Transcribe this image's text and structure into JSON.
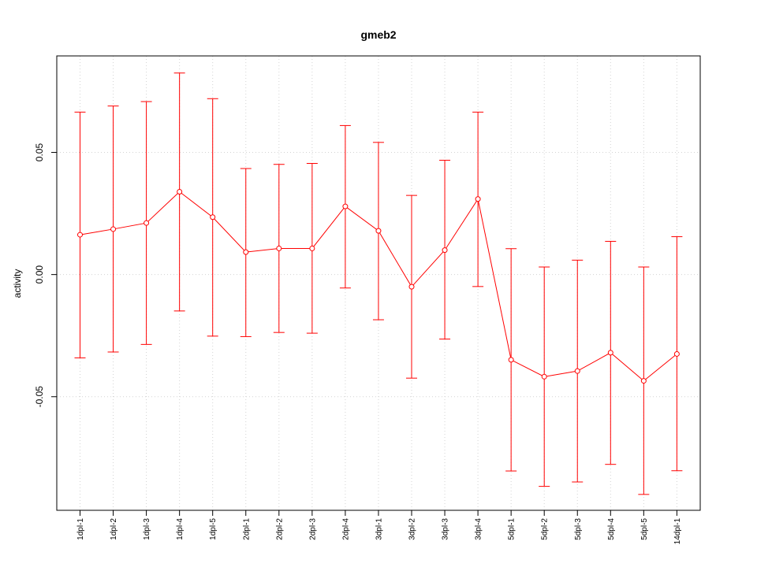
{
  "chart_data": {
    "type": "line",
    "title": "gmeb2",
    "xlabel": "",
    "ylabel": "activity",
    "categories": [
      "1dpl-1",
      "1dpl-2",
      "1dpl-3",
      "1dpl-4",
      "1dpl-5",
      "2dpl-1",
      "2dpl-2",
      "2dpl-3",
      "2dpl-4",
      "3dpl-1",
      "3dpl-2",
      "3dpl-3",
      "3dpl-4",
      "5dpl-1",
      "5dpl-2",
      "5dpl-3",
      "5dpl-4",
      "5dpl-5",
      "14dpl-1"
    ],
    "values": [
      0.0163,
      0.0186,
      0.0211,
      0.0339,
      0.0235,
      0.0092,
      0.0107,
      0.0107,
      0.0279,
      0.0179,
      -0.005,
      0.01,
      0.0309,
      -0.0349,
      -0.0418,
      -0.0395,
      -0.032,
      -0.0435,
      -0.0325
    ],
    "error_upper": [
      0.0665,
      0.069,
      0.0708,
      0.0825,
      0.072,
      0.0434,
      0.0451,
      0.0455,
      0.061,
      0.0541,
      0.0324,
      0.0468,
      0.0665,
      0.0106,
      0.0031,
      0.0059,
      0.0136,
      0.0031,
      0.0155
    ],
    "error_lower": [
      -0.0341,
      -0.0317,
      -0.0286,
      -0.0149,
      -0.0252,
      -0.0254,
      -0.0237,
      -0.024,
      -0.0055,
      -0.0185,
      -0.0424,
      -0.0264,
      -0.0049,
      -0.0804,
      -0.0867,
      -0.0849,
      -0.0777,
      -0.09,
      -0.0803
    ],
    "yticks": [
      "-0.05",
      "0.00",
      "0.05"
    ],
    "ytick_values": [
      -0.05,
      0,
      0.05
    ],
    "ylim": [
      -0.0965,
      0.0895
    ],
    "grid": true,
    "color": "#ff0000"
  }
}
